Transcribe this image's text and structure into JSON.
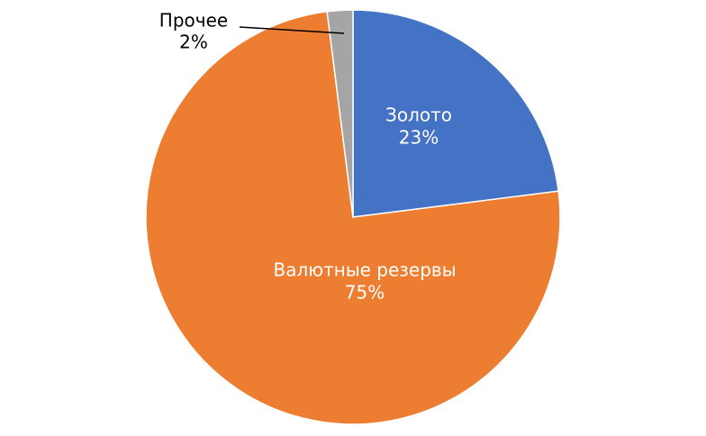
{
  "chart_data": {
    "type": "pie",
    "categories": [
      "Золото",
      "Валютные резервы",
      "Прочее"
    ],
    "values": [
      23,
      75,
      2
    ],
    "value_labels": [
      "23%",
      "75%",
      "2%"
    ],
    "colors": [
      "#4472c4",
      "#ed7d31",
      "#a5a5a5"
    ]
  }
}
